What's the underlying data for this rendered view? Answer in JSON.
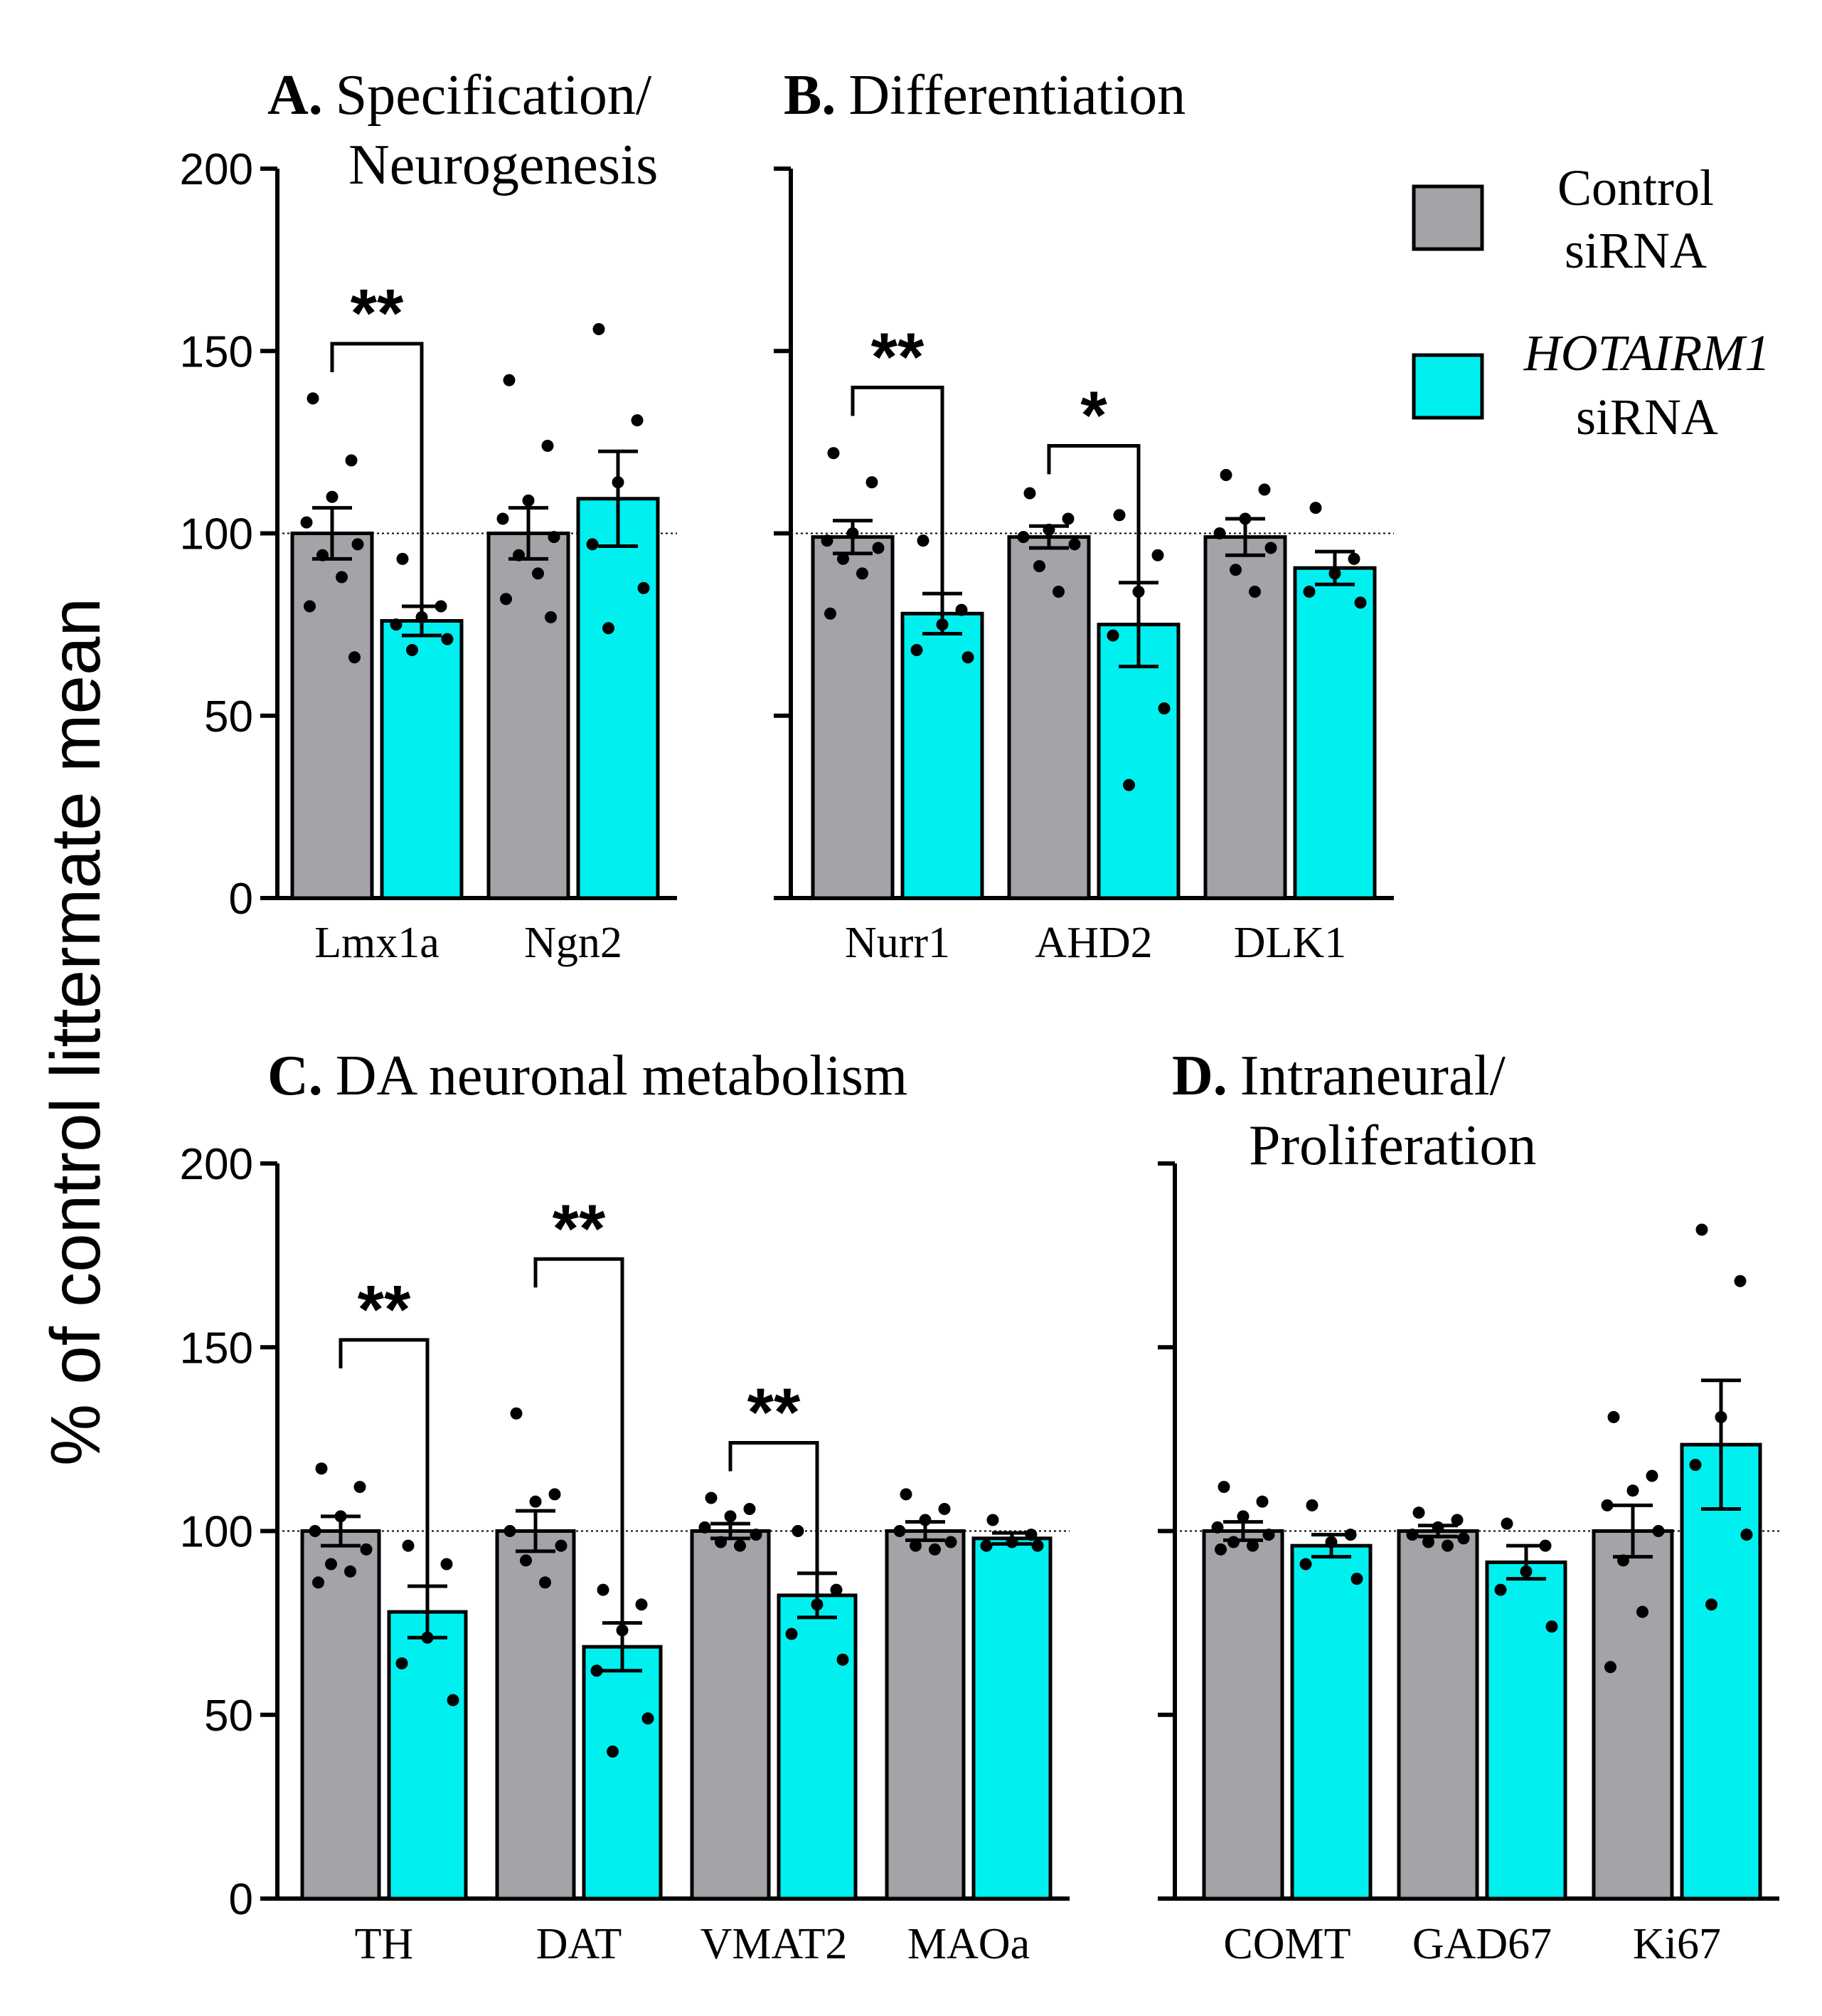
{
  "colors": {
    "control": "#a3a3a8",
    "hotairm1": "#00f0f0",
    "axis": "#000000"
  },
  "ylabel": "% of control littermate mean",
  "legend": [
    {
      "line1": "Control",
      "line2": "siRNA",
      "italic": false,
      "color": "#a3a3a8"
    },
    {
      "line1": "HOTAIRM1",
      "line2": "siRNA",
      "italic": true,
      "color": "#00f0f0"
    }
  ],
  "chart_data": [
    {
      "type": "bar",
      "panel": "A",
      "title_letter": "A.",
      "title_line1": "Specification/",
      "title_line2": "Neurogenesis",
      "ylim": [
        0,
        200
      ],
      "yticks": [
        0,
        50,
        100,
        150,
        200
      ],
      "show_tick_labels": true,
      "ref_line": 100,
      "categories": [
        "Lmx1a",
        "Ngn2"
      ],
      "series": [
        {
          "name": "Control siRNA",
          "values": [
            100,
            100
          ],
          "sem": [
            7,
            7
          ],
          "points": [
            [
              137,
              120,
              110,
              103,
              97,
              94,
              88,
              80,
              66
            ],
            [
              142,
              124,
              109,
              104,
              99,
              94,
              89,
              82,
              77
            ]
          ]
        },
        {
          "name": "HOTAIRM1 siRNA",
          "values": [
            76,
            109.5
          ],
          "sem": [
            4,
            13
          ],
          "points": [
            [
              93,
              80,
              77,
              75,
              71,
              68
            ],
            [
              156,
              131,
              114,
              97,
              85,
              74
            ]
          ]
        }
      ],
      "significance": [
        {
          "category": "Lmx1a",
          "label": "**",
          "y": 152
        }
      ]
    },
    {
      "type": "bar",
      "panel": "B",
      "title_letter": "B.",
      "title_line1": "Differentiation",
      "title_line2": "",
      "ylim": [
        0,
        200
      ],
      "yticks": [
        0,
        50,
        100,
        150,
        200
      ],
      "show_tick_labels": false,
      "ref_line": 100,
      "categories": [
        "Nurr1",
        "AHD2",
        "DLK1"
      ],
      "series": [
        {
          "name": "Control siRNA",
          "values": [
            99,
            99,
            99
          ],
          "sem": [
            4.5,
            3,
            5
          ],
          "points": [
            [
              122,
              114,
              100,
              98,
              96,
              93,
              89,
              78
            ],
            [
              111,
              104,
              101,
              99,
              97,
              91,
              84
            ],
            [
              116,
              112,
              104,
              100,
              96,
              90,
              84
            ]
          ]
        },
        {
          "name": "HOTAIRM1 siRNA",
          "values": [
            78,
            75,
            90.5
          ],
          "sem": [
            5.5,
            11.5,
            4.5
          ],
          "points": [
            [
              98,
              79,
              75,
              68,
              66
            ],
            [
              105,
              94,
              84,
              72,
              52,
              31
            ],
            [
              107,
              93,
              89,
              84,
              81
            ]
          ]
        }
      ],
      "significance": [
        {
          "category": "Nurr1",
          "label": "**",
          "y": 140
        },
        {
          "category": "AHD2",
          "label": "*",
          "y": 124
        }
      ]
    },
    {
      "type": "bar",
      "panel": "C",
      "title_letter": "C.",
      "title_line1": "DA neuronal metabolism",
      "title_line2": "",
      "ylim": [
        0,
        200
      ],
      "yticks": [
        0,
        50,
        100,
        150,
        200
      ],
      "show_tick_labels": true,
      "ref_line": 100,
      "categories": [
        "TH",
        "DAT",
        "VMAT2",
        "MAOa"
      ],
      "series": [
        {
          "name": "Control siRNA",
          "values": [
            100,
            100,
            100,
            100
          ],
          "sem": [
            4,
            5.5,
            2,
            2.5
          ],
          "points": [
            [
              117,
              112,
              104,
              100,
              95,
              91,
              89,
              86
            ],
            [
              132,
              110,
              108,
              100,
              96,
              92,
              86
            ],
            [
              109,
              106,
              104,
              101,
              99,
              97,
              96
            ],
            [
              110,
              106,
              103,
              100,
              97,
              96,
              95
            ]
          ]
        },
        {
          "name": "HOTAIRM1 siRNA",
          "values": [
            78,
            68.5,
            82.5,
            98
          ],
          "sem": [
            7,
            6.5,
            6,
            1.5
          ],
          "points": [
            [
              96,
              91,
              71,
              64,
              54
            ],
            [
              84,
              80,
              73,
              62,
              49,
              40
            ],
            [
              100,
              84,
              80,
              72,
              65
            ],
            [
              103,
              99,
              97,
              96,
              96
            ]
          ]
        }
      ],
      "significance": [
        {
          "category": "TH",
          "label": "**",
          "y": 152
        },
        {
          "category": "DAT",
          "label": "**",
          "y": 174
        },
        {
          "category": "VMAT2",
          "label": "**",
          "y": 124
        }
      ]
    },
    {
      "type": "bar",
      "panel": "D",
      "title_letter": "D.",
      "title_line1": "Intraneural/",
      "title_line2": "Proliferation",
      "ylim": [
        0,
        200
      ],
      "yticks": [
        0,
        50,
        100,
        150,
        200
      ],
      "show_tick_labels": false,
      "ref_line": 100,
      "categories": [
        "COMT",
        "GAD67",
        "Ki67"
      ],
      "series": [
        {
          "name": "Control siRNA",
          "values": [
            100,
            100,
            100
          ],
          "sem": [
            2.5,
            1.5,
            7
          ],
          "points": [
            [
              112,
              108,
              104,
              101,
              99,
              97,
              96,
              95
            ],
            [
              105,
              103,
              101,
              99,
              98,
              97,
              96
            ],
            [
              131,
              115,
              111,
              107,
              100,
              92,
              78,
              63
            ]
          ]
        },
        {
          "name": "HOTAIRM1 siRNA",
          "values": [
            96,
            91.5,
            123.5
          ],
          "sem": [
            3,
            4.5,
            17.5
          ],
          "points": [
            [
              107,
              99,
              97,
              91,
              87
            ],
            [
              102,
              96,
              89,
              84,
              74
            ],
            [
              182,
              168,
              131,
              118,
              99,
              80
            ]
          ]
        }
      ],
      "significance": []
    }
  ]
}
